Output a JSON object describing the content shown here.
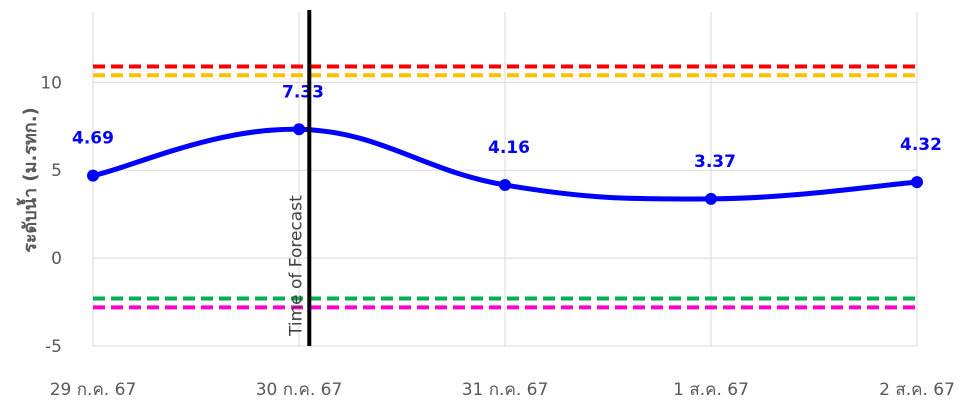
{
  "chart_data": {
    "type": "line",
    "ylabel": "ระดับน้ำ (ม.รทก.)",
    "categories": [
      "29 ก.ค. 67",
      "30 ก.ค. 67",
      "31 ก.ค. 67",
      "1 ส.ค. 67",
      "2 ส.ค. 67"
    ],
    "yticks": [
      "10",
      "5",
      "0",
      "-5"
    ],
    "ylim": [
      -5,
      14
    ],
    "grid": true,
    "series": [
      {
        "values": [
          4.69,
          7.33,
          4.16,
          3.37,
          4.32
        ],
        "labels": [
          "4.69",
          "7.33",
          "4.16",
          "3.37",
          "4.32"
        ],
        "color": "#0000ff",
        "smooth": true
      }
    ],
    "reference_lines": [
      {
        "value": 10.9,
        "color": "#ff0000",
        "style": "dashed"
      },
      {
        "value": 10.4,
        "color": "#ffc000",
        "style": "dashed"
      },
      {
        "value": -2.3,
        "color": "#00b050",
        "style": "dashed"
      },
      {
        "value": -2.8,
        "color": "#ff00cc",
        "style": "dashed"
      }
    ],
    "annotation": {
      "label": "Time of Forecast",
      "x_category_index": 1.05,
      "color": "#000000"
    }
  }
}
